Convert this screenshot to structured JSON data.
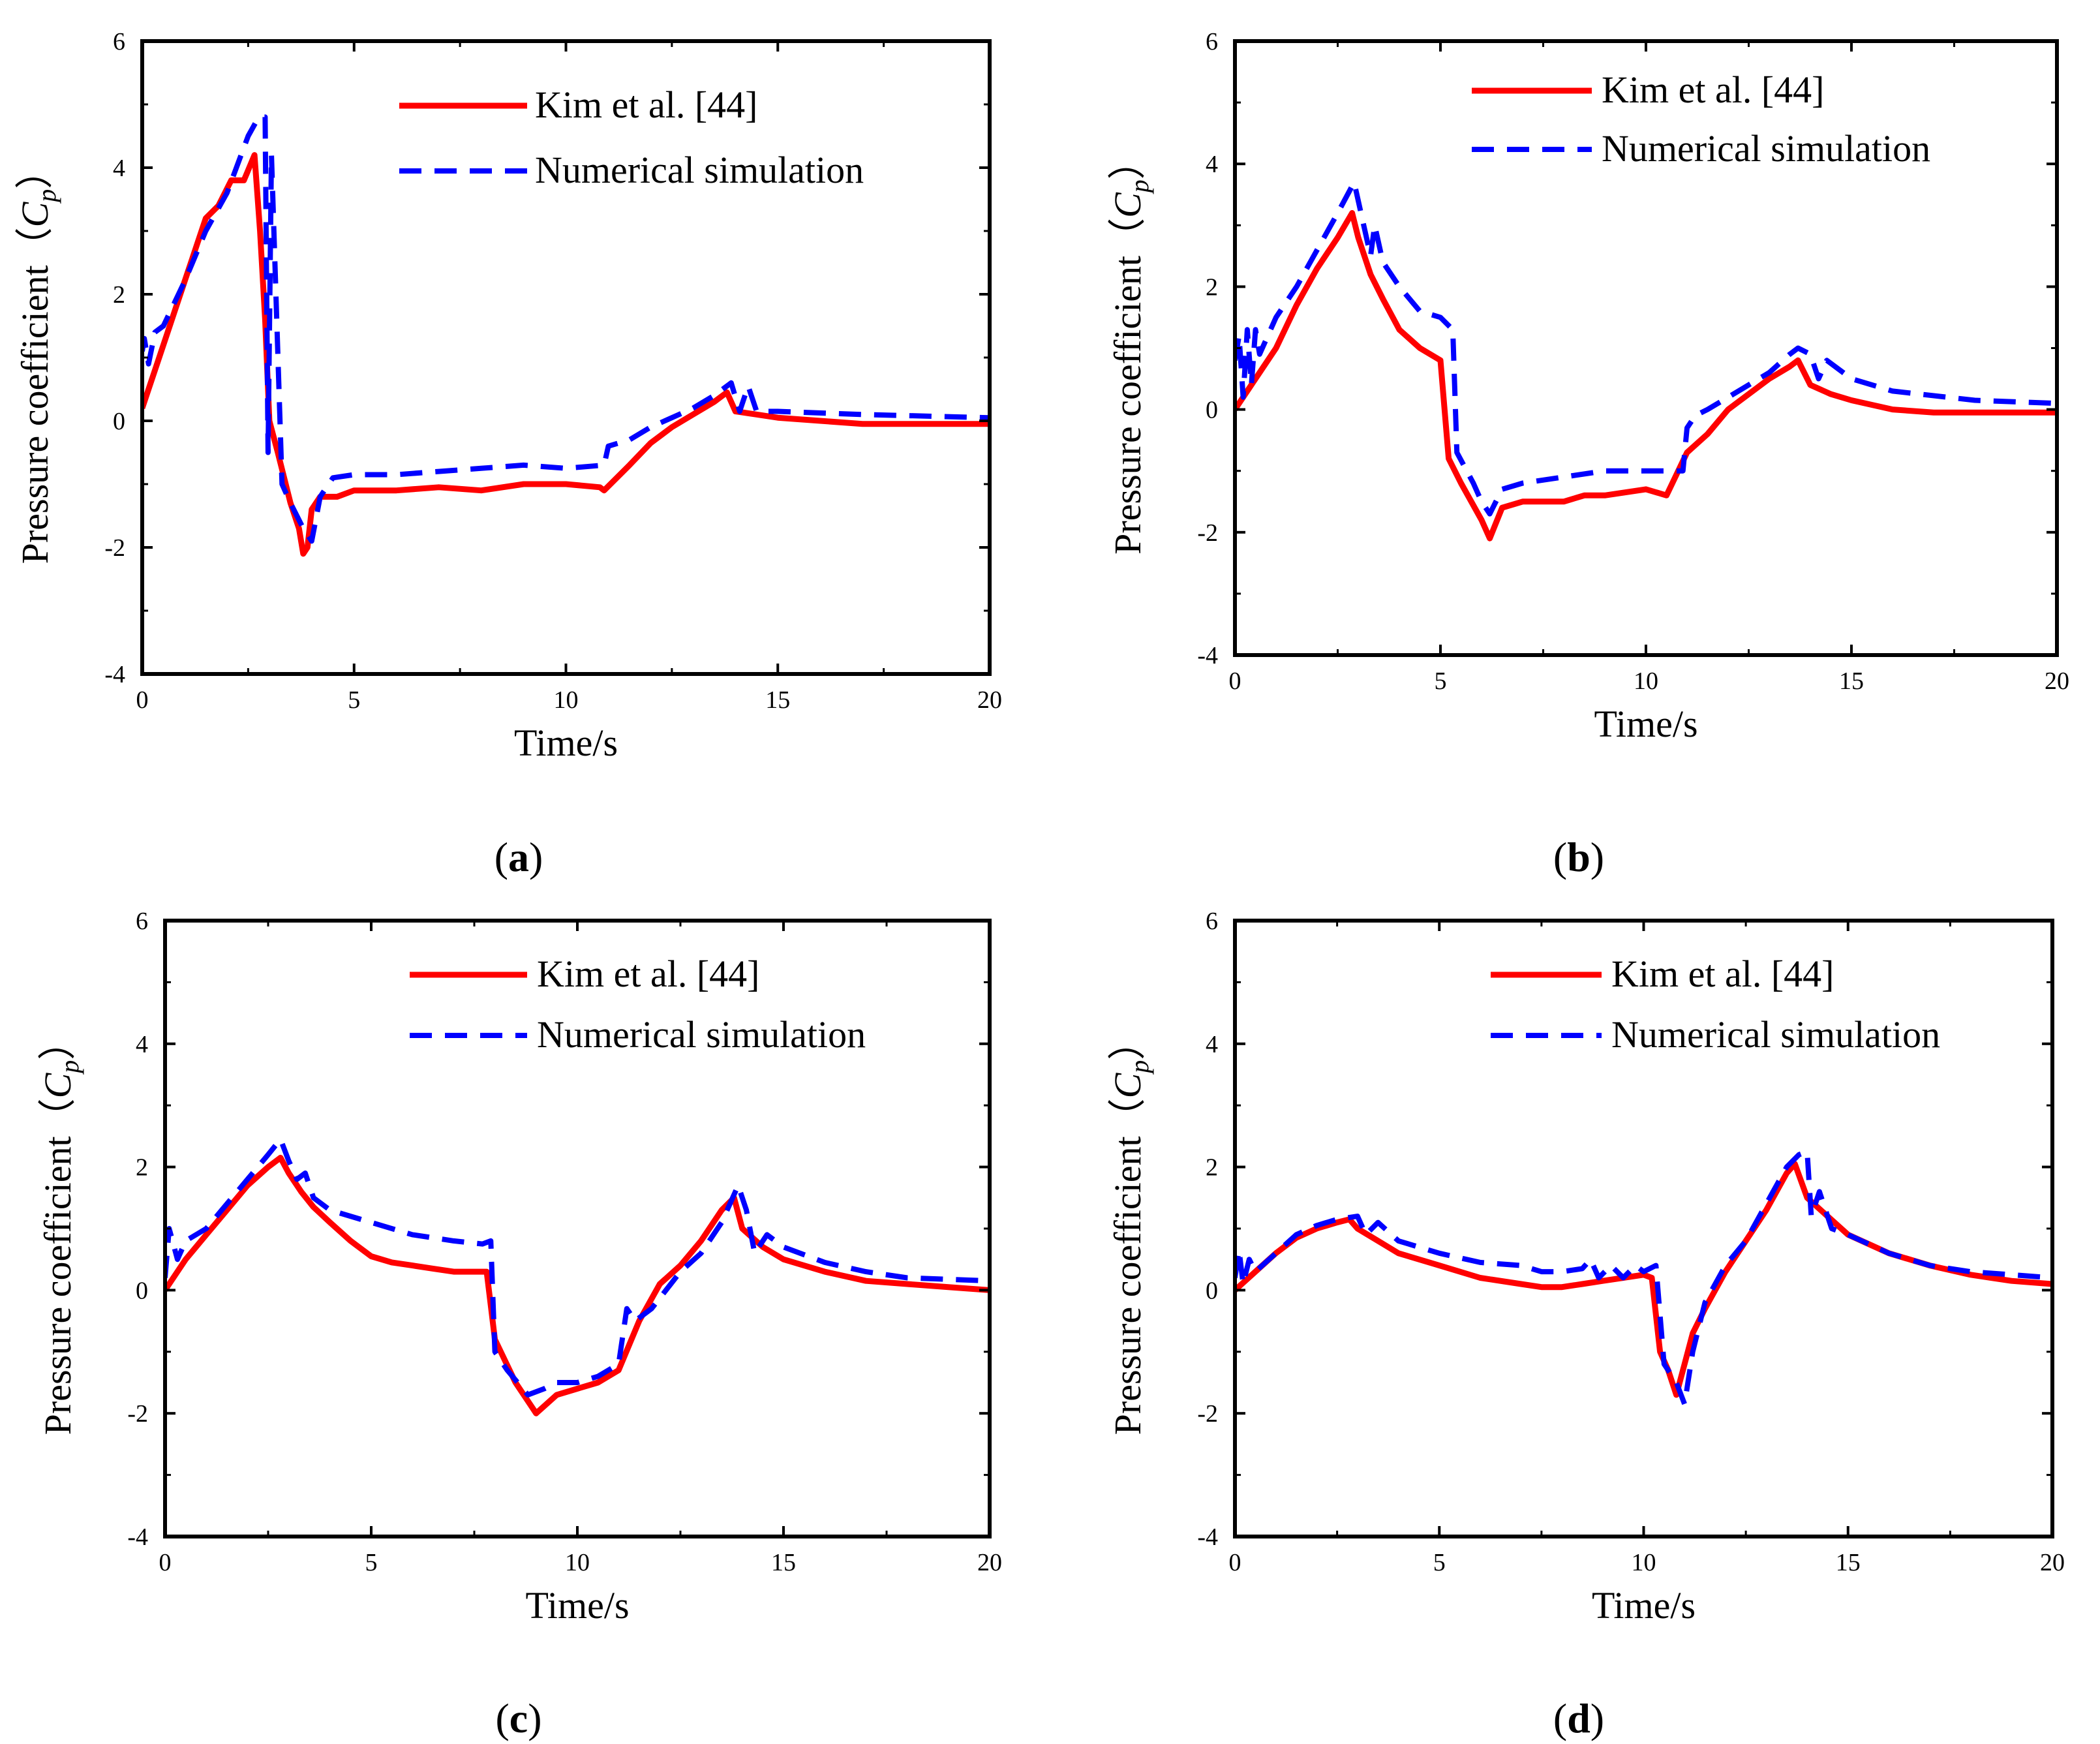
{
  "figure": {
    "colors": {
      "reference": "#ff0000",
      "simulation": "#0000ff",
      "axes": "#000000"
    }
  },
  "chart_data": [
    {
      "type": "line",
      "panel": "a",
      "panel_label": "a",
      "xlabel": "Time/s",
      "ylabel": "Pressure coefficient（",
      "ylabel_symbol": "C",
      "ylabel_subscript": "p",
      "ylabel_close": "）",
      "xlim": [
        0,
        20
      ],
      "ylim": [
        -4,
        6
      ],
      "xticks": [
        "0",
        "5",
        "10",
        "15",
        "20"
      ],
      "yticks": [
        "-4",
        "-2",
        "0",
        "2",
        "4",
        "6"
      ],
      "legend": [
        "Kim et al. [44]",
        "Numerical simulation"
      ],
      "series": [
        {
          "name": "Kim et al. [44]",
          "style": "solid",
          "color": "#ff0000",
          "x": [
            0,
            0.5,
            1,
            1.5,
            1.8,
            2.1,
            2.4,
            2.65,
            2.78,
            2.9,
            3.0,
            3.2,
            3.5,
            3.7,
            3.8,
            3.9,
            4.0,
            4.2,
            4.6,
            5,
            6,
            7,
            8,
            9,
            10,
            10.8,
            10.9,
            11.5,
            12,
            12.5,
            13,
            13.5,
            13.8,
            14.0,
            14.5,
            15,
            16,
            17,
            20
          ],
          "y": [
            0.2,
            1.2,
            2.2,
            3.2,
            3.4,
            3.8,
            3.8,
            4.2,
            3.0,
            1.6,
            0,
            -0.5,
            -1.3,
            -1.7,
            -2.1,
            -2.0,
            -1.4,
            -1.2,
            -1.2,
            -1.1,
            -1.1,
            -1.05,
            -1.1,
            -1.0,
            -1.0,
            -1.05,
            -1.1,
            -0.7,
            -0.35,
            -0.1,
            0.1,
            0.3,
            0.45,
            0.15,
            0.1,
            0.05,
            0,
            -0.05,
            -0.05
          ]
        },
        {
          "name": "Numerical simulation",
          "style": "dashed",
          "color": "#0000ff",
          "x": [
            0,
            0.05,
            0.15,
            0.3,
            0.5,
            1,
            1.5,
            2,
            2.5,
            2.75,
            2.9,
            2.97,
            3.05,
            3.3,
            3.5,
            3.8,
            4.0,
            4.2,
            4.5,
            5,
            6,
            7,
            8,
            9,
            10,
            10.9,
            11.0,
            11.5,
            12,
            12.5,
            13,
            13.5,
            13.9,
            14.1,
            14.3,
            14.5,
            15,
            17,
            20
          ],
          "y": [
            1.1,
            1.3,
            0.9,
            1.4,
            1.5,
            2.2,
            3.0,
            3.6,
            4.5,
            4.8,
            4.8,
            -0.5,
            4.2,
            -1.0,
            -1.3,
            -1.7,
            -1.9,
            -1.2,
            -0.9,
            -0.85,
            -0.85,
            -0.8,
            -0.75,
            -0.7,
            -0.75,
            -0.7,
            -0.4,
            -0.3,
            -0.1,
            0.05,
            0.2,
            0.4,
            0.6,
            0.15,
            0.55,
            0.15,
            0.15,
            0.1,
            0.05
          ]
        }
      ]
    },
    {
      "type": "line",
      "panel": "b",
      "panel_label": "b",
      "xlabel": "Time/s",
      "ylabel": "Pressure coefficient（",
      "ylabel_symbol": "C",
      "ylabel_subscript": "p",
      "ylabel_close": "）",
      "xlim": [
        0,
        20
      ],
      "ylim": [
        -4,
        6
      ],
      "xticks": [
        "0",
        "5",
        "10",
        "15",
        "20"
      ],
      "yticks": [
        "-4",
        "-2",
        "0",
        "2",
        "4",
        "6"
      ],
      "legend": [
        "Kim et al. [44]",
        "Numerical simulation"
      ],
      "series": [
        {
          "name": "Kim et al. [44]",
          "style": "solid",
          "color": "#ff0000",
          "x": [
            0,
            0.5,
            1,
            1.5,
            2,
            2.5,
            2.85,
            3.0,
            3.3,
            3.6,
            4.0,
            4.5,
            5.0,
            5.2,
            5.5,
            6.0,
            6.2,
            6.5,
            7,
            7.5,
            8,
            8.5,
            9,
            10,
            10.5,
            11,
            11.5,
            12,
            13,
            13.5,
            13.7,
            14.0,
            14.5,
            15,
            16,
            17,
            18,
            20
          ],
          "y": [
            0,
            0.5,
            1.0,
            1.7,
            2.3,
            2.8,
            3.2,
            2.8,
            2.2,
            1.8,
            1.3,
            1.0,
            0.8,
            -0.8,
            -1.2,
            -1.8,
            -2.1,
            -1.6,
            -1.5,
            -1.5,
            -1.5,
            -1.4,
            -1.4,
            -1.3,
            -1.4,
            -0.7,
            -0.4,
            0,
            0.5,
            0.7,
            0.8,
            0.4,
            0.25,
            0.15,
            0,
            -0.05,
            -0.05,
            -0.05
          ]
        },
        {
          "name": "Numerical simulation",
          "style": "dashed",
          "color": "#0000ff",
          "x": [
            0,
            0.1,
            0.2,
            0.3,
            0.4,
            0.5,
            0.6,
            1,
            1.5,
            2,
            2.5,
            2.9,
            3.1,
            3.3,
            3.4,
            3.6,
            4.0,
            4.5,
            5.0,
            5.3,
            5.4,
            5.8,
            6.0,
            6.2,
            6.5,
            7,
            8,
            9,
            10,
            10.9,
            11.0,
            11.2,
            11.5,
            12,
            13,
            13.5,
            13.7,
            14.0,
            14.2,
            14.4,
            15,
            16,
            18,
            20
          ],
          "y": [
            0.8,
            1.2,
            0.2,
            1.3,
            0.4,
            1.3,
            0.9,
            1.5,
            2.0,
            2.6,
            3.2,
            3.7,
            3.1,
            2.5,
            3.0,
            2.4,
            2.0,
            1.6,
            1.5,
            1.3,
            -0.7,
            -1.2,
            -1.5,
            -1.7,
            -1.3,
            -1.2,
            -1.1,
            -1.0,
            -1.0,
            -1.0,
            -0.3,
            -0.1,
            0,
            0.2,
            0.6,
            0.9,
            1.0,
            0.9,
            0.5,
            0.8,
            0.5,
            0.3,
            0.15,
            0.1
          ]
        }
      ]
    },
    {
      "type": "line",
      "panel": "c",
      "panel_label": "c",
      "xlabel": "Time/s",
      "ylabel": "Pressure coefficient（",
      "ylabel_symbol": "C",
      "ylabel_subscript": "p",
      "ylabel_close": "）",
      "xlim": [
        0,
        20
      ],
      "ylim": [
        -4,
        6
      ],
      "xticks": [
        "0",
        "5",
        "10",
        "15",
        "20"
      ],
      "yticks": [
        "-4",
        "-2",
        "0",
        "2",
        "4",
        "6"
      ],
      "legend": [
        "Kim et al. [44]",
        "Numerical simulation"
      ],
      "series": [
        {
          "name": "Kim et al. [44]",
          "style": "solid",
          "color": "#ff0000",
          "x": [
            0,
            0.5,
            1,
            1.5,
            2,
            2.5,
            2.8,
            3.0,
            3.3,
            3.6,
            4,
            4.5,
            5,
            5.5,
            6,
            6.5,
            7,
            7.5,
            7.8,
            8.0,
            8.5,
            9.0,
            9.5,
            10.0,
            10.5,
            11,
            11.5,
            12,
            12.5,
            13,
            13.5,
            13.8,
            14.0,
            14.5,
            15,
            16,
            17,
            18,
            19,
            20
          ],
          "y": [
            0,
            0.5,
            0.9,
            1.3,
            1.7,
            2.0,
            2.15,
            1.9,
            1.6,
            1.35,
            1.1,
            0.8,
            0.55,
            0.45,
            0.4,
            0.35,
            0.3,
            0.3,
            0.3,
            -0.8,
            -1.5,
            -2.0,
            -1.7,
            -1.6,
            -1.5,
            -1.3,
            -0.5,
            0.1,
            0.4,
            0.8,
            1.3,
            1.5,
            1.0,
            0.7,
            0.5,
            0.3,
            0.15,
            0.1,
            0.05,
            0
          ]
        },
        {
          "name": "Numerical simulation",
          "style": "dashed",
          "color": "#0000ff",
          "x": [
            0,
            0.1,
            0.3,
            0.5,
            1,
            1.5,
            2,
            2.5,
            2.8,
            3.0,
            3.2,
            3.4,
            3.6,
            4,
            5,
            6,
            7,
            7.7,
            7.9,
            8.0,
            8.3,
            8.8,
            9.2,
            9.5,
            10,
            10.5,
            11,
            11.2,
            11.4,
            11.8,
            12.5,
            13,
            13.5,
            13.9,
            14.1,
            14.3,
            14.6,
            15,
            16,
            17,
            18,
            20
          ],
          "y": [
            0.2,
            1.0,
            0.5,
            0.8,
            1.0,
            1.4,
            1.8,
            2.2,
            2.45,
            2.1,
            1.8,
            1.9,
            1.5,
            1.3,
            1.1,
            0.9,
            0.8,
            0.75,
            0.8,
            -1.0,
            -1.3,
            -1.7,
            -1.6,
            -1.5,
            -1.5,
            -1.4,
            -1.2,
            -0.3,
            -0.5,
            -0.3,
            0.3,
            0.6,
            1.1,
            1.7,
            1.3,
            0.6,
            0.9,
            0.7,
            0.45,
            0.3,
            0.2,
            0.15
          ]
        }
      ]
    },
    {
      "type": "line",
      "panel": "d",
      "panel_label": "d",
      "xlabel": "Time/s",
      "ylabel": "Pressure coefficient（",
      "ylabel_symbol": "C",
      "ylabel_subscript": "p",
      "ylabel_close": "）",
      "xlim": [
        0,
        20
      ],
      "ylim": [
        -4,
        6
      ],
      "xticks": [
        "0",
        "5",
        "10",
        "15",
        "20"
      ],
      "yticks": [
        "-4",
        "-2",
        "0",
        "2",
        "4",
        "6"
      ],
      "legend": [
        "Kim et al. [44]",
        "Numerical simulation"
      ],
      "series": [
        {
          "name": "Kim et al. [44]",
          "style": "solid",
          "color": "#ff0000",
          "x": [
            0,
            0.5,
            1,
            1.5,
            2,
            2.5,
            2.8,
            3.0,
            3.5,
            4,
            5,
            6,
            7,
            7.5,
            8,
            8.5,
            9,
            9.5,
            10,
            10.2,
            10.4,
            10.6,
            10.8,
            11.0,
            11.2,
            11.5,
            12,
            12.5,
            13,
            13.5,
            13.7,
            14.0,
            14.5,
            15,
            16,
            17,
            18,
            19,
            20
          ],
          "y": [
            0,
            0.3,
            0.6,
            0.85,
            1.0,
            1.1,
            1.15,
            1.0,
            0.8,
            0.6,
            0.4,
            0.2,
            0.1,
            0.05,
            0.05,
            0.1,
            0.15,
            0.2,
            0.25,
            0.2,
            -1.0,
            -1.3,
            -1.7,
            -1.2,
            -0.7,
            -0.3,
            0.3,
            0.8,
            1.3,
            1.9,
            2.05,
            1.5,
            1.2,
            0.9,
            0.6,
            0.4,
            0.25,
            0.15,
            0.1
          ]
        },
        {
          "name": "Numerical simulation",
          "style": "dashed",
          "color": "#0000ff",
          "x": [
            0,
            0.1,
            0.2,
            0.35,
            0.5,
            1,
            1.5,
            2,
            2.5,
            3.0,
            3.2,
            3.5,
            4,
            5,
            6,
            7,
            7.5,
            8,
            8.5,
            8.7,
            8.9,
            9.2,
            9.5,
            9.8,
            10,
            10.3,
            10.5,
            10.8,
            11.0,
            11.2,
            11.5,
            12,
            12.5,
            13,
            13.5,
            13.8,
            14.0,
            14.1,
            14.3,
            14.6,
            15,
            16,
            17,
            18,
            20
          ],
          "y": [
            0.2,
            0.65,
            0.1,
            0.5,
            0.3,
            0.6,
            0.9,
            1.05,
            1.15,
            1.2,
            0.9,
            1.1,
            0.8,
            0.6,
            0.45,
            0.4,
            0.3,
            0.3,
            0.35,
            0.5,
            0.2,
            0.4,
            0.2,
            0.4,
            0.3,
            0.4,
            -1.2,
            -1.5,
            -1.85,
            -1.0,
            -0.2,
            0.4,
            0.8,
            1.4,
            2.0,
            2.2,
            2.25,
            1.2,
            1.6,
            1.0,
            0.9,
            0.6,
            0.4,
            0.3,
            0.2
          ]
        }
      ]
    }
  ]
}
